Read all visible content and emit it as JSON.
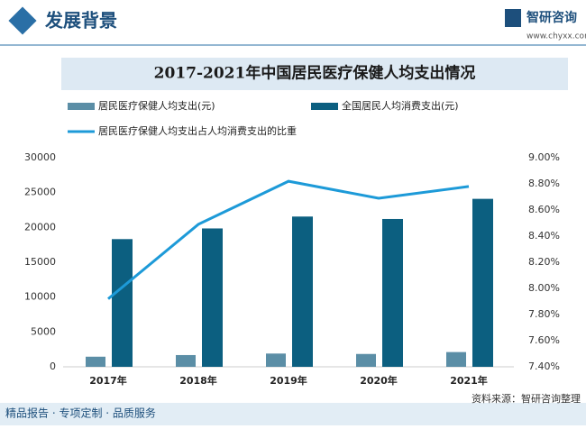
{
  "header": {
    "title": "发展背景",
    "brand": "智研咨询",
    "url": "www.chyxx.com"
  },
  "chart_data": {
    "type": "bar-line",
    "title": "2017-2021年中国居民医疗保健人均支出情况",
    "categories": [
      "2017年",
      "2018年",
      "2019年",
      "2020年",
      "2021年"
    ],
    "series": [
      {
        "name": "居民医疗保健人均支出(元)",
        "color": "#5b8ea6",
        "values": [
          1451,
          1685,
          1902,
          1843,
          2115
        ]
      },
      {
        "name": "全国居民人均消费支出(元)",
        "color": "#0c5f80",
        "values": [
          18322,
          19853,
          21559,
          21210,
          24100
        ]
      },
      {
        "name": "居民医疗保健人均支出占人均消费支出的比重",
        "color": "#1d9ad8",
        "axis": "y2",
        "values": [
          7.92,
          8.49,
          8.82,
          8.69,
          8.78
        ]
      }
    ],
    "ylim": [
      0,
      30000
    ],
    "yticks": [
      0,
      5000,
      10000,
      15000,
      20000,
      25000,
      30000
    ],
    "y2lim": [
      7.4,
      9.0
    ],
    "y2ticks": [
      {
        "value": 7.4,
        "label": "7.40%"
      },
      {
        "value": 7.6,
        "label": "7.60%"
      },
      {
        "value": 7.8,
        "label": "7.80%"
      },
      {
        "value": 8.0,
        "label": "8.00%"
      },
      {
        "value": 8.2,
        "label": "8.20%"
      },
      {
        "value": 8.4,
        "label": "8.40%"
      },
      {
        "value": 8.6,
        "label": "8.60%"
      },
      {
        "value": 8.8,
        "label": "8.80%"
      },
      {
        "value": 9.0,
        "label": "9.00%"
      }
    ]
  },
  "footer": {
    "left": "精品报告 · 专项定制 · 品质服务",
    "source": "资料来源：智研咨询整理"
  }
}
